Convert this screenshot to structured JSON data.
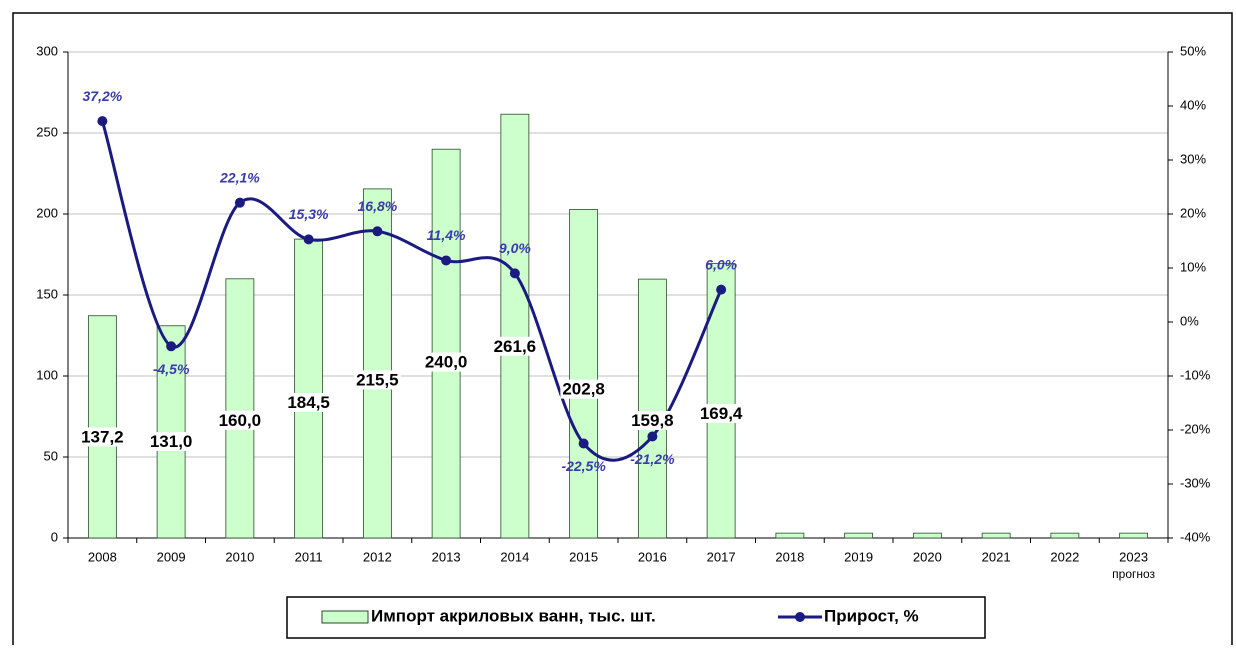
{
  "chart_data": {
    "type": "bar_line",
    "categories": [
      "2008",
      "2009",
      "2010",
      "2011",
      "2012",
      "2013",
      "2014",
      "2015",
      "2016",
      "2017",
      "2018",
      "2019",
      "2020",
      "2021",
      "2022",
      "2023"
    ],
    "x_note": "прогноз",
    "series": [
      {
        "name": "Импорт акриловых ванн, тыс. шт.",
        "type": "bar",
        "color": "#ccffcc",
        "values": [
          137.2,
          131.0,
          160.0,
          184.5,
          215.5,
          240.0,
          261.6,
          202.8,
          159.8,
          169.4,
          3,
          3,
          3,
          3,
          3,
          3
        ],
        "value_labels": [
          "137,2",
          "131,0",
          "160,0",
          "184,5",
          "215,5",
          "240,0",
          "261,6",
          "202,8",
          "159,8",
          "169,4",
          null,
          null,
          null,
          null,
          null,
          null
        ]
      },
      {
        "name": "Прирост, %",
        "type": "line",
        "axis": "y2",
        "color": "#1a1a80",
        "values": [
          37.2,
          -4.5,
          22.1,
          15.3,
          16.8,
          11.4,
          9.0,
          -22.5,
          -21.2,
          6.0,
          null,
          null,
          null,
          null,
          null,
          null
        ],
        "value_labels": [
          "37,2%",
          "-4,5%",
          "22,1%",
          "15,3%",
          "16,8%",
          "11,4%",
          "9,0%",
          "-22,5%",
          "-21,2%",
          "6,0%",
          null,
          null,
          null,
          null,
          null,
          null
        ]
      }
    ],
    "ylim": [
      0,
      300
    ],
    "yticks": [
      0,
      50,
      100,
      150,
      200,
      250,
      300
    ],
    "y2lim": [
      -40,
      50
    ],
    "y2ticks": [
      {
        "value": -40,
        "label": "-40%"
      },
      {
        "value": -30,
        "label": "-30%"
      },
      {
        "value": -20,
        "label": "-20%"
      },
      {
        "value": -10,
        "label": "-10%"
      },
      {
        "value": 0,
        "label": "0%"
      },
      {
        "value": 10,
        "label": "10%"
      },
      {
        "value": 20,
        "label": "20%"
      },
      {
        "value": 30,
        "label": "30%"
      },
      {
        "value": 40,
        "label": "40%"
      },
      {
        "value": 50,
        "label": "50%"
      }
    ],
    "grid": true,
    "legend": "bottom"
  }
}
